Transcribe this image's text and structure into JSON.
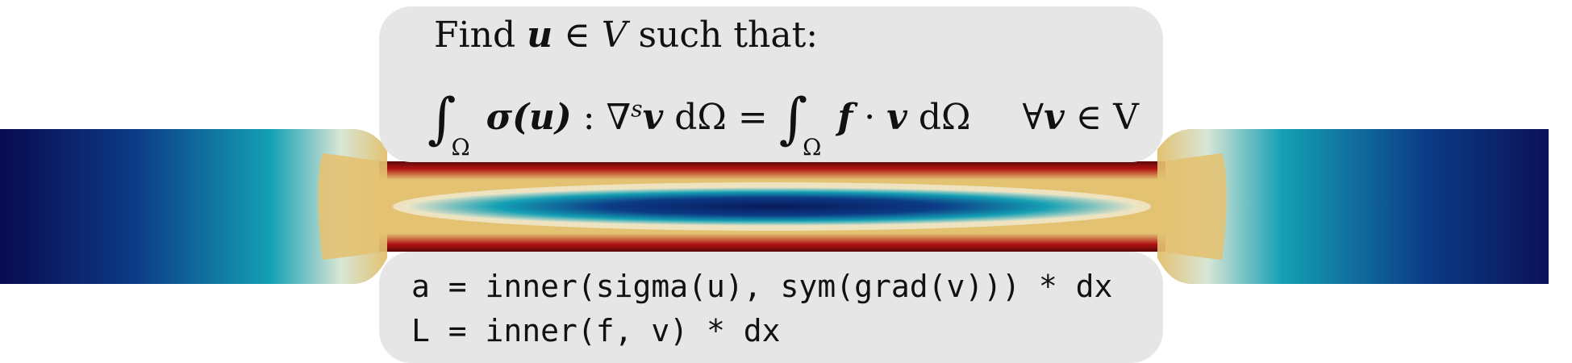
{
  "weak_form": {
    "find_prefix": "Find",
    "u_symbol": "u",
    "in_symbol": "∈",
    "v_space": "V",
    "find_suffix": "such that:",
    "integral": "∫",
    "omega": "Ω",
    "sigma_term": "σ",
    "sigma_arg": "(u)",
    "colon": " : ",
    "grad_sym": "∇",
    "grad_sup": "s",
    "v_symbol": "v",
    "d_omega": " dΩ",
    "equals": " = ",
    "f_symbol": "f",
    "dot": " · ",
    "forall": "∀",
    "in_space": " ∈ V"
  },
  "code": {
    "line_a": "a = inner(sigma(u), sym(grad(v))) * dx",
    "line_l": "L = inner(f, v) * dx"
  },
  "colors": {
    "deep_blue": "#0a0a50",
    "blue": "#0c3b86",
    "teal": "#14a0b4",
    "light": "#f0e6c8",
    "sand": "#e3c272",
    "red": "#b11212",
    "dark_red": "#5a0a0a",
    "box_bg": "#e6e6e6"
  }
}
